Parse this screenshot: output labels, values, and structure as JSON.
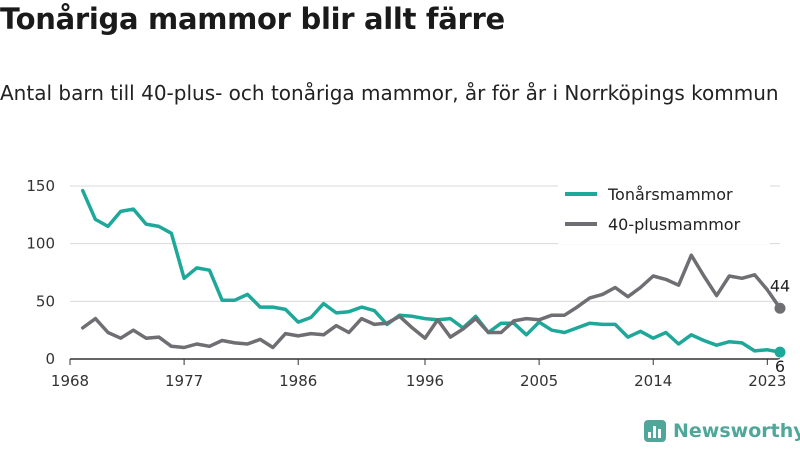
{
  "header": {
    "title": "Tonåriga mammor blir allt färre",
    "subtitle": "Antal barn till 40-plus- och tonåriga mammor, år för år i Norrköpings kommun"
  },
  "brand": {
    "name": "Newsworthy"
  },
  "colors": {
    "teal": "#1da89a",
    "gray": "#6e6e73",
    "grid": "#d9d9d9",
    "axis": "#333333"
  },
  "chart_data": {
    "type": "line",
    "xlabel": "",
    "ylabel": "",
    "xlim": [
      1968,
      2024
    ],
    "ylim": [
      0,
      150
    ],
    "yticks": [
      0,
      50,
      100,
      150
    ],
    "xticks": [
      1968,
      1977,
      1986,
      1996,
      2005,
      2014,
      2023
    ],
    "grid": true,
    "legend": "top-right",
    "x": [
      1969,
      1970,
      1971,
      1972,
      1973,
      1974,
      1975,
      1976,
      1977,
      1978,
      1979,
      1980,
      1981,
      1982,
      1983,
      1984,
      1985,
      1986,
      1987,
      1988,
      1989,
      1990,
      1991,
      1992,
      1993,
      1994,
      1995,
      1996,
      1997,
      1998,
      1999,
      2000,
      2001,
      2002,
      2003,
      2004,
      2005,
      2006,
      2007,
      2008,
      2009,
      2010,
      2011,
      2012,
      2013,
      2014,
      2015,
      2016,
      2017,
      2018,
      2019,
      2020,
      2021,
      2022,
      2023,
      2024
    ],
    "series": [
      {
        "name": "Tonårsmammor",
        "color": "#1da89a",
        "values": [
          146,
          121,
          115,
          128,
          130,
          117,
          115,
          109,
          70,
          79,
          77,
          51,
          51,
          56,
          45,
          45,
          43,
          32,
          36,
          48,
          40,
          41,
          45,
          42,
          30,
          38,
          37,
          35,
          34,
          35,
          27,
          37,
          23,
          31,
          31,
          21,
          32,
          25,
          23,
          27,
          31,
          30,
          30,
          19,
          24,
          18,
          23,
          13,
          21,
          16,
          12,
          15,
          14,
          7,
          8,
          6
        ],
        "end_label": "6"
      },
      {
        "name": "40-plusmammor",
        "color": "#6e6e73",
        "values": [
          27,
          35,
          23,
          18,
          25,
          18,
          19,
          11,
          10,
          13,
          11,
          16,
          14,
          13,
          17,
          10,
          22,
          20,
          22,
          21,
          29,
          23,
          35,
          30,
          31,
          37,
          27,
          18,
          34,
          19,
          26,
          35,
          23,
          23,
          33,
          35,
          34,
          38,
          38,
          45,
          53,
          56,
          62,
          54,
          62,
          72,
          69,
          64,
          90,
          72,
          55,
          72,
          70,
          73,
          60,
          44
        ],
        "end_label": "44"
      }
    ]
  }
}
